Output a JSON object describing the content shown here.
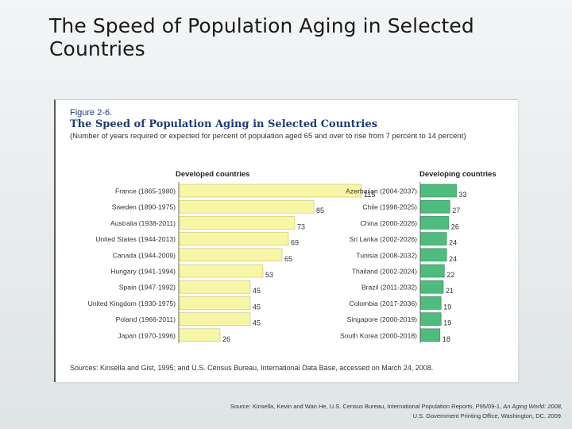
{
  "slide": {
    "title": "The Speed of Population Aging in Selected Countries",
    "source_line1": "Source: Kinsella, Kevin and Wan He, U.S. Census Bureau, International Population Reports, P95/09-1,",
    "source_italic": "An Aging World: 2008,",
    "source_line2": "U.S. Government Printing Office, Washington, DC, 2009."
  },
  "figure": {
    "label": "Figure 2-6.",
    "title": "The Speed of Population Aging in Selected Countries",
    "subtitle": "(Number of years required or expected for percent of population aged 65 and over to rise from 7 percent to 14 percent)",
    "source": "Sources: Kinsella and Gist, 1995; and U.S. Census Bureau, International Data Base, accessed on March 24, 2008."
  },
  "colors": {
    "developed_bar": "#f7f5a6",
    "developed_stroke": "#c9c46a",
    "developing_bar": "#4fbb7c",
    "developing_stroke": "#2e8b57"
  },
  "chart_data": [
    {
      "type": "bar",
      "orientation": "horizontal",
      "title": "Developed countries",
      "categories": [
        "France (1865-1980)",
        "Sweden (1890-1975)",
        "Australia (1938-2011)",
        "United States (1944-2013)",
        "Canada (1944-2009)",
        "Hungary (1941-1994)",
        "Spain (1947-1992)",
        "United Kingdom (1930-1975)",
        "Poland (1966-2011)",
        "Japan (1970-1996)"
      ],
      "values": [
        115,
        85,
        73,
        69,
        65,
        53,
        45,
        45,
        45,
        26
      ],
      "xlim": [
        0,
        120
      ]
    },
    {
      "type": "bar",
      "orientation": "horizontal",
      "title": "Developing countries",
      "categories": [
        "Azerbaijan (2004-2037)",
        "Chile (1998-2025)",
        "China (2000-2026)",
        "Sri Lanka (2002-2026)",
        "Tunisia (2008-2032)",
        "Thailand (2002-2024)",
        "Brazil (2011-2032)",
        "Colombia (2017-2036)",
        "Singapore (2000-2019)",
        "South Korea (2000-2018)"
      ],
      "values": [
        33,
        27,
        26,
        24,
        24,
        22,
        21,
        19,
        19,
        18
      ],
      "xlim": [
        0,
        120
      ]
    }
  ]
}
